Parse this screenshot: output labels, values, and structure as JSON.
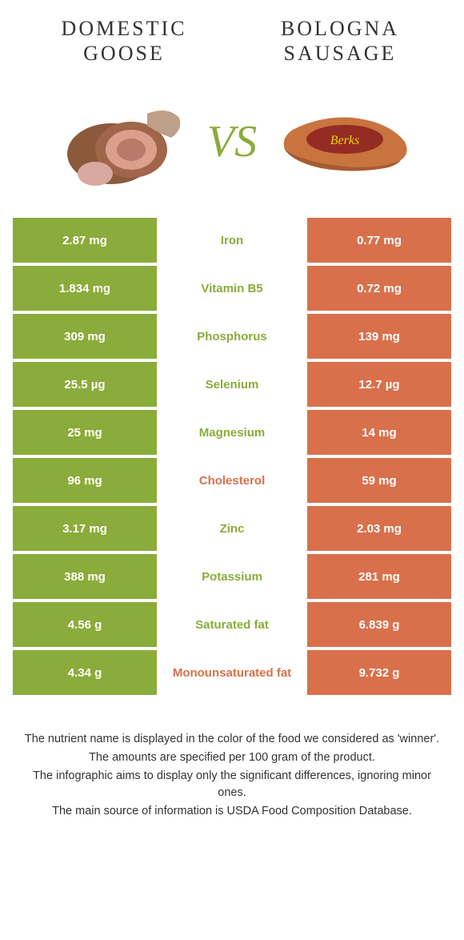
{
  "left_food": "Domestic goose",
  "right_food": "Bologna sausage",
  "vs_label": "VS",
  "colors": {
    "left": "#8aac3a",
    "right": "#d9704c",
    "background": "#ffffff",
    "title_text": "#333333",
    "cell_text": "#ffffff"
  },
  "fonts": {
    "title_family": "Georgia, serif",
    "title_size_pt": 20,
    "title_letter_spacing": 3,
    "vs_size_pt": 42,
    "cell_size_pt": 11,
    "footer_size_pt": 11
  },
  "rows": [
    {
      "nutrient": "Iron",
      "left": "2.87 mg",
      "right": "0.77 mg",
      "winner": "left"
    },
    {
      "nutrient": "Vitamin B5",
      "left": "1.834 mg",
      "right": "0.72 mg",
      "winner": "left"
    },
    {
      "nutrient": "Phosphorus",
      "left": "309 mg",
      "right": "139 mg",
      "winner": "left"
    },
    {
      "nutrient": "Selenium",
      "left": "25.5 µg",
      "right": "12.7 µg",
      "winner": "left"
    },
    {
      "nutrient": "Magnesium",
      "left": "25 mg",
      "right": "14 mg",
      "winner": "left"
    },
    {
      "nutrient": "Cholesterol",
      "left": "96 mg",
      "right": "59 mg",
      "winner": "right"
    },
    {
      "nutrient": "Zinc",
      "left": "3.17 mg",
      "right": "2.03 mg",
      "winner": "left"
    },
    {
      "nutrient": "Potassium",
      "left": "388 mg",
      "right": "281 mg",
      "winner": "left"
    },
    {
      "nutrient": "Saturated fat",
      "left": "4.56 g",
      "right": "6.839 g",
      "winner": "left"
    },
    {
      "nutrient": "Monounsaturated fat",
      "left": "4.34 g",
      "right": "9.732 g",
      "winner": "right"
    }
  ],
  "footer": [
    "The nutrient name is displayed in the color of the food we considered as 'winner'.",
    "The amounts are specified per 100 gram of the product.",
    "The infographic aims to display only the significant differences, ignoring minor ones.",
    "The main source of information is USDA Food Composition Database."
  ]
}
